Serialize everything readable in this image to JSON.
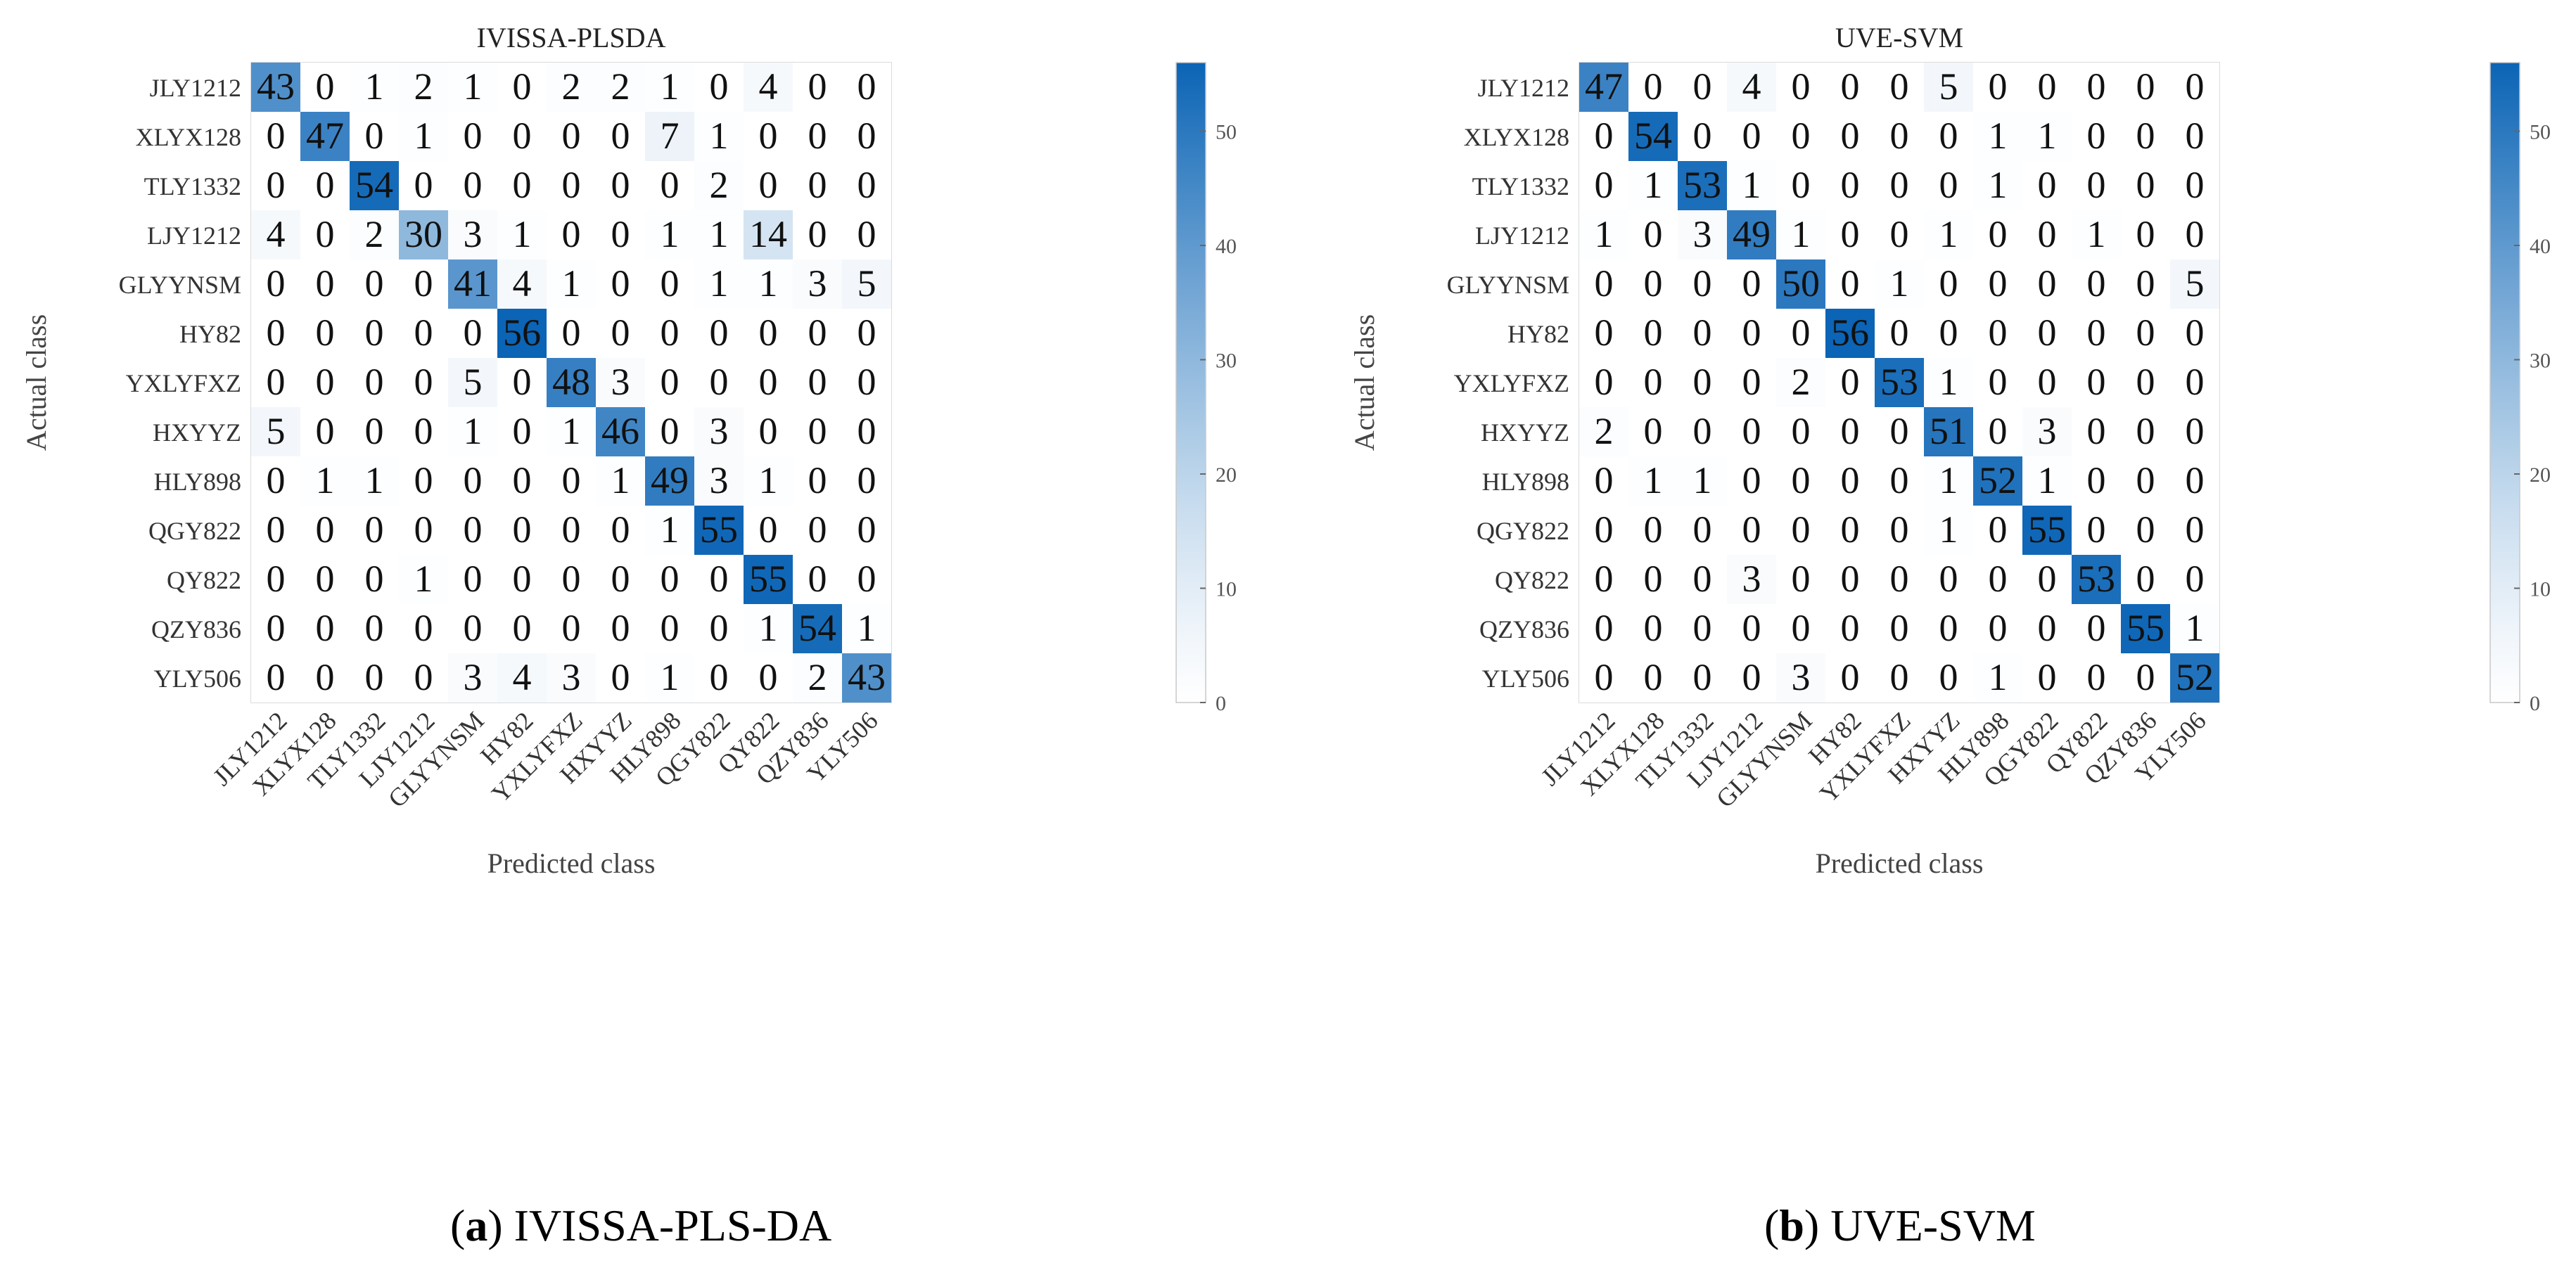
{
  "figure": {
    "captions": [
      {
        "letter": "a",
        "text": "IVISSA-PLS-DA"
      },
      {
        "letter": "b",
        "text": "UVE-SVM"
      }
    ]
  },
  "chart_data": [
    {
      "type": "heatmap",
      "title": "IVISSA-PLSDA",
      "xlabel": "Predicted class",
      "ylabel": "Actual class",
      "categories": [
        "JLY1212",
        "XLYX128",
        "TLY1332",
        "LJY1212",
        "GLYYNSM",
        "HY82",
        "YXLYFXZ",
        "HXYYZ",
        "HLY898",
        "QGY822",
        "QY822",
        "QZY836",
        "YLY506"
      ],
      "matrix": [
        [
          43,
          0,
          1,
          2,
          1,
          0,
          2,
          2,
          1,
          0,
          4,
          0,
          0
        ],
        [
          0,
          47,
          0,
          1,
          0,
          0,
          0,
          0,
          7,
          1,
          0,
          0,
          0
        ],
        [
          0,
          0,
          54,
          0,
          0,
          0,
          0,
          0,
          0,
          2,
          0,
          0,
          0
        ],
        [
          4,
          0,
          2,
          30,
          3,
          1,
          0,
          0,
          1,
          1,
          14,
          0,
          0
        ],
        [
          0,
          0,
          0,
          0,
          41,
          4,
          1,
          0,
          0,
          1,
          1,
          3,
          5
        ],
        [
          0,
          0,
          0,
          0,
          0,
          56,
          0,
          0,
          0,
          0,
          0,
          0,
          0
        ],
        [
          0,
          0,
          0,
          0,
          5,
          0,
          48,
          3,
          0,
          0,
          0,
          0,
          0
        ],
        [
          5,
          0,
          0,
          0,
          1,
          0,
          1,
          46,
          0,
          3,
          0,
          0,
          0
        ],
        [
          0,
          1,
          1,
          0,
          0,
          0,
          0,
          1,
          49,
          3,
          1,
          0,
          0
        ],
        [
          0,
          0,
          0,
          0,
          0,
          0,
          0,
          0,
          1,
          55,
          0,
          0,
          0
        ],
        [
          0,
          0,
          0,
          1,
          0,
          0,
          0,
          0,
          0,
          0,
          55,
          0,
          0
        ],
        [
          0,
          0,
          0,
          0,
          0,
          0,
          0,
          0,
          0,
          0,
          1,
          54,
          1
        ],
        [
          0,
          0,
          0,
          0,
          3,
          4,
          3,
          0,
          1,
          0,
          0,
          2,
          43
        ]
      ],
      "colorbar": {
        "min": 0,
        "max": 56,
        "ticks": [
          0,
          10,
          20,
          30,
          40,
          50
        ],
        "low_color": "#ffffff",
        "high_color": "#0b64b5"
      }
    },
    {
      "type": "heatmap",
      "title": "UVE-SVM",
      "xlabel": "Predicted class",
      "ylabel": "Actual class",
      "categories": [
        "JLY1212",
        "XLYX128",
        "TLY1332",
        "LJY1212",
        "GLYYNSM",
        "HY82",
        "YXLYFXZ",
        "HXYYZ",
        "HLY898",
        "QGY822",
        "QY822",
        "QZY836",
        "YLY506"
      ],
      "matrix": [
        [
          47,
          0,
          0,
          4,
          0,
          0,
          0,
          5,
          0,
          0,
          0,
          0,
          0
        ],
        [
          0,
          54,
          0,
          0,
          0,
          0,
          0,
          0,
          1,
          1,
          0,
          0,
          0
        ],
        [
          0,
          1,
          53,
          1,
          0,
          0,
          0,
          0,
          1,
          0,
          0,
          0,
          0
        ],
        [
          1,
          0,
          3,
          49,
          1,
          0,
          0,
          1,
          0,
          0,
          1,
          0,
          0
        ],
        [
          0,
          0,
          0,
          0,
          50,
          0,
          1,
          0,
          0,
          0,
          0,
          0,
          5
        ],
        [
          0,
          0,
          0,
          0,
          0,
          56,
          0,
          0,
          0,
          0,
          0,
          0,
          0
        ],
        [
          0,
          0,
          0,
          0,
          2,
          0,
          53,
          1,
          0,
          0,
          0,
          0,
          0
        ],
        [
          2,
          0,
          0,
          0,
          0,
          0,
          0,
          51,
          0,
          3,
          0,
          0,
          0
        ],
        [
          0,
          1,
          1,
          0,
          0,
          0,
          0,
          1,
          52,
          1,
          0,
          0,
          0
        ],
        [
          0,
          0,
          0,
          0,
          0,
          0,
          0,
          1,
          0,
          55,
          0,
          0,
          0
        ],
        [
          0,
          0,
          0,
          3,
          0,
          0,
          0,
          0,
          0,
          0,
          53,
          0,
          0
        ],
        [
          0,
          0,
          0,
          0,
          0,
          0,
          0,
          0,
          0,
          0,
          0,
          55,
          1
        ],
        [
          0,
          0,
          0,
          0,
          3,
          0,
          0,
          0,
          1,
          0,
          0,
          0,
          52
        ]
      ],
      "colorbar": {
        "min": 0,
        "max": 56,
        "ticks": [
          0,
          10,
          20,
          30,
          40,
          50
        ],
        "low_color": "#ffffff",
        "high_color": "#0b64b5"
      }
    }
  ]
}
